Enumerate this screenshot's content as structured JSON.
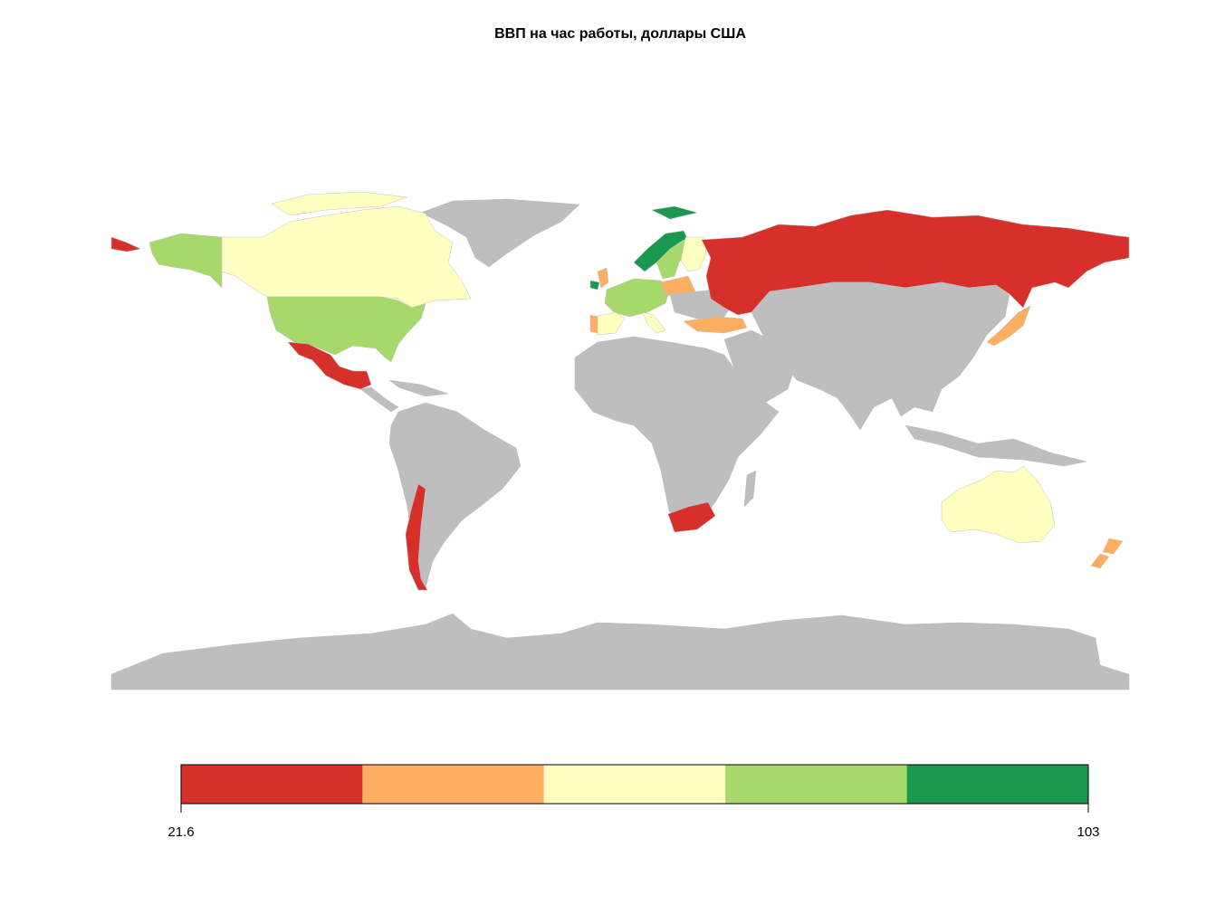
{
  "title": "ВВП на час работы, доллары США",
  "legend": {
    "colors": [
      "#d7302a",
      "#fdae61",
      "#ffffbf",
      "#a6d96a",
      "#1a9850"
    ],
    "min": 21.6,
    "max": 103
  }
}
